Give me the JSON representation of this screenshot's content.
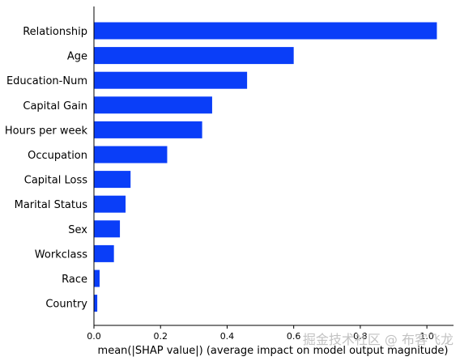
{
  "chart_data": {
    "type": "bar",
    "orientation": "horizontal",
    "categories": [
      "Relationship",
      "Age",
      "Education-Num",
      "Capital Gain",
      "Hours per week",
      "Occupation",
      "Capital Loss",
      "Marital Status",
      "Sex",
      "Workclass",
      "Race",
      "Country"
    ],
    "values": [
      1.03,
      0.6,
      0.46,
      0.355,
      0.325,
      0.22,
      0.11,
      0.095,
      0.078,
      0.06,
      0.017,
      0.01
    ],
    "xlabel": "mean(|SHAP value|) (average impact on model output magnitude)",
    "xlim": [
      0,
      1.08
    ],
    "xticks": [
      "0.0",
      "0.2",
      "0.4",
      "0.6",
      "0.8",
      "1.0"
    ],
    "bar_color": "#0a3ef8",
    "grid": false
  },
  "watermark": "掘金技术社区 @ 布客飞龙"
}
